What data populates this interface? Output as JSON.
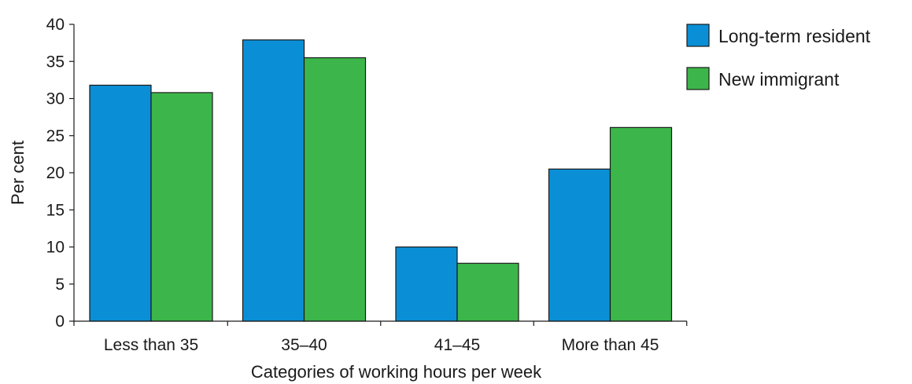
{
  "chart_data": {
    "type": "bar",
    "title": "",
    "xlabel": "Categories of working hours per week",
    "ylabel": "Per cent",
    "ylim": [
      0,
      40
    ],
    "yticks": [
      0,
      5,
      10,
      15,
      20,
      25,
      30,
      35,
      40
    ],
    "grid": false,
    "legend_position": "top-right",
    "categories": [
      "Less than 35",
      "35–40",
      "41–45",
      "More than 45"
    ],
    "series": [
      {
        "name": "Long-term resident",
        "color": "#0a8fd6",
        "values": [
          31.8,
          37.9,
          10.0,
          20.5
        ]
      },
      {
        "name": "New immigrant",
        "color": "#3cb64a",
        "values": [
          30.8,
          35.5,
          7.8,
          26.1
        ]
      }
    ]
  }
}
